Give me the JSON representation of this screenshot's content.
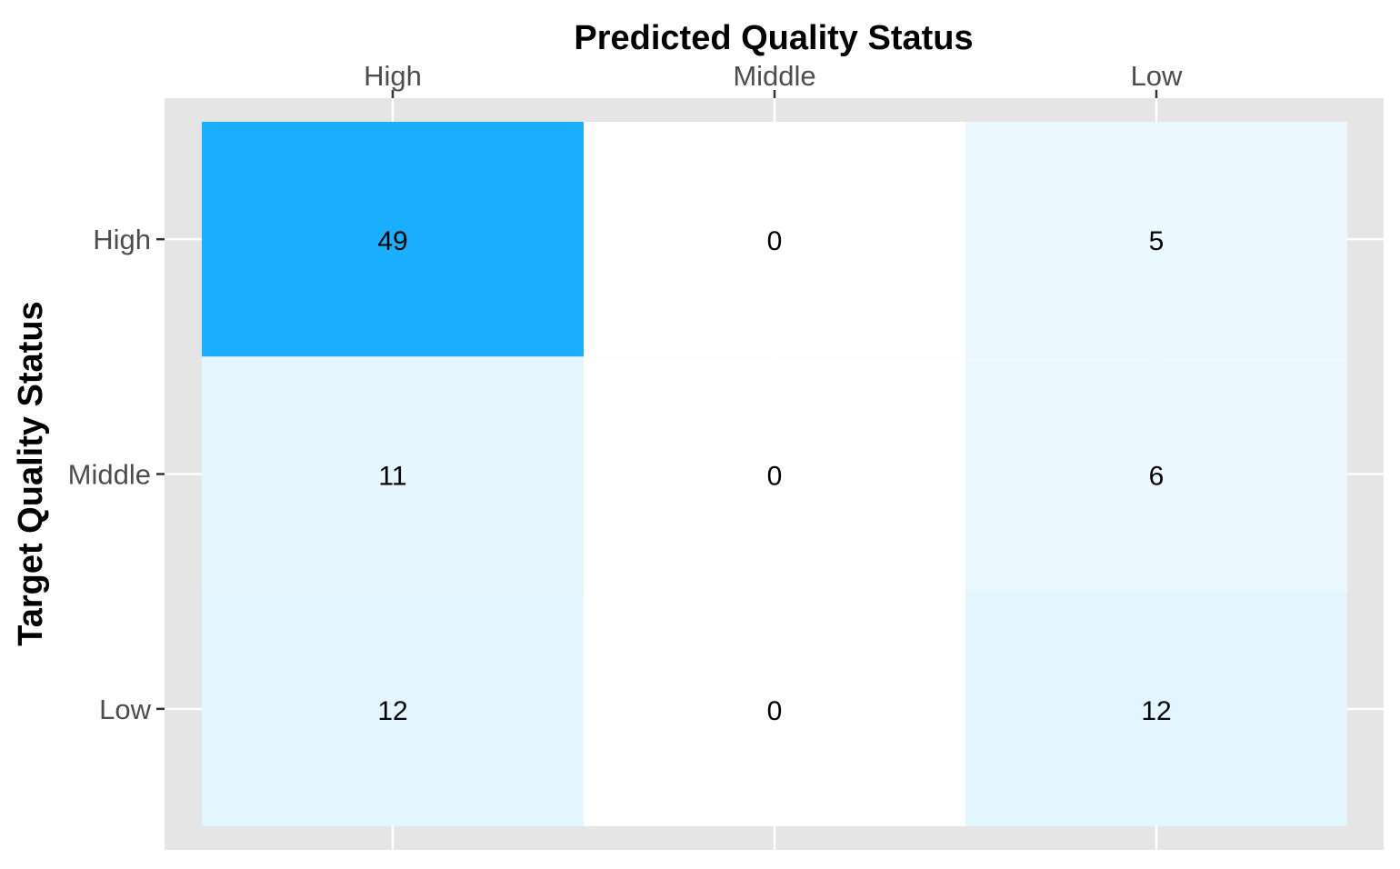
{
  "chart_data": {
    "type": "heatmap",
    "title": "",
    "xlabel": "Predicted Quality Status",
    "ylabel": "Target Quality Status",
    "x_position": "top",
    "x_categories": [
      "High",
      "Middle",
      "Low"
    ],
    "y_categories": [
      "High",
      "Middle",
      "Low"
    ],
    "values": [
      [
        49,
        0,
        5
      ],
      [
        11,
        0,
        6
      ],
      [
        12,
        0,
        12
      ]
    ],
    "color_low": "#ffffff",
    "color_high": "#1ab0ff",
    "panel_background": "#e5e5e5",
    "grid": true,
    "legend": "none"
  }
}
